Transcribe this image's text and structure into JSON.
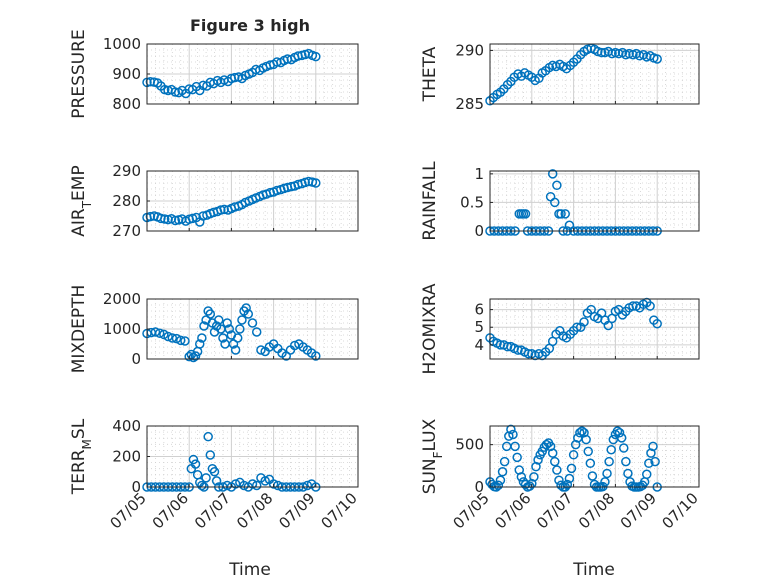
{
  "figure": {
    "title": "Figure 3 high",
    "xlabel": "Time"
  },
  "x_ticks": [
    "07/05",
    "07/06",
    "07/07",
    "07/08",
    "07/09",
    "07/10"
  ],
  "colors": {
    "marker": "#0072BD",
    "axes": "#262626",
    "grid": "#d0d0d0",
    "background": "#ffffff"
  },
  "chart_data": [
    {
      "type": "scatter",
      "ylabel": "PRESSURE",
      "ylim": [
        800,
        1000
      ],
      "yticks": [
        "800",
        "900",
        "1000"
      ],
      "xlim": [
        "07/05",
        "07/10"
      ],
      "grid": "on",
      "x": [
        0.0,
        0.08,
        0.17,
        0.25,
        0.33,
        0.42,
        0.5,
        0.58,
        0.67,
        0.75,
        0.83,
        0.92,
        1.0,
        1.08,
        1.17,
        1.25,
        1.33,
        1.42,
        1.5,
        1.58,
        1.67,
        1.75,
        1.83,
        1.92,
        2.0,
        2.08,
        2.17,
        2.25,
        2.33,
        2.42,
        2.5,
        2.58,
        2.67,
        2.75,
        2.83,
        2.92,
        3.0,
        3.08,
        3.17,
        3.25,
        3.33,
        3.42,
        3.5,
        3.58,
        3.67,
        3.75,
        3.83,
        3.92,
        4.0
      ],
      "y": [
        872,
        874,
        873,
        870,
        860,
        848,
        845,
        848,
        840,
        838,
        845,
        835,
        850,
        848,
        858,
        845,
        862,
        860,
        872,
        868,
        878,
        872,
        880,
        875,
        885,
        888,
        890,
        885,
        895,
        900,
        905,
        915,
        912,
        920,
        925,
        930,
        932,
        940,
        938,
        945,
        950,
        948,
        955,
        960,
        962,
        965,
        968,
        962,
        958
      ]
    },
    {
      "type": "scatter",
      "ylabel": "THETA",
      "ylim": [
        285,
        290.6
      ],
      "yticks": [
        "285",
        "290"
      ],
      "xlim": [
        "07/05",
        "07/10"
      ],
      "grid": "on",
      "x": [
        0.0,
        0.08,
        0.17,
        0.25,
        0.33,
        0.42,
        0.5,
        0.58,
        0.67,
        0.75,
        0.83,
        0.92,
        1.0,
        1.08,
        1.17,
        1.25,
        1.33,
        1.42,
        1.5,
        1.58,
        1.67,
        1.75,
        1.83,
        1.92,
        2.0,
        2.08,
        2.17,
        2.25,
        2.33,
        2.42,
        2.5,
        2.58,
        2.67,
        2.75,
        2.83,
        2.92,
        3.0,
        3.08,
        3.17,
        3.25,
        3.33,
        3.42,
        3.5,
        3.58,
        3.67,
        3.75,
        3.83,
        3.92,
        4.0
      ],
      "y": [
        285.3,
        285.6,
        285.9,
        286.1,
        286.4,
        286.8,
        287.1,
        287.5,
        287.8,
        287.6,
        287.9,
        287.7,
        287.5,
        287.2,
        287.4,
        287.9,
        288.1,
        288.4,
        288.6,
        288.5,
        288.7,
        288.5,
        288.3,
        288.6,
        288.9,
        289.2,
        289.6,
        289.9,
        290.1,
        290.2,
        290.1,
        289.9,
        289.8,
        289.8,
        289.9,
        289.7,
        289.8,
        289.7,
        289.8,
        289.6,
        289.7,
        289.6,
        289.7,
        289.5,
        289.6,
        289.4,
        289.5,
        289.3,
        289.2
      ]
    },
    {
      "type": "scatter",
      "ylabel": "AIR_TEMP",
      "ylim": [
        270,
        290
      ],
      "yticks": [
        "270",
        "280",
        "290"
      ],
      "xlim": [
        "07/05",
        "07/10"
      ],
      "grid": "on",
      "x": [
        0.0,
        0.08,
        0.17,
        0.25,
        0.33,
        0.42,
        0.5,
        0.58,
        0.67,
        0.75,
        0.83,
        0.92,
        1.0,
        1.08,
        1.17,
        1.25,
        1.33,
        1.42,
        1.5,
        1.58,
        1.67,
        1.75,
        1.83,
        1.92,
        2.0,
        2.08,
        2.17,
        2.25,
        2.33,
        2.42,
        2.5,
        2.58,
        2.67,
        2.75,
        2.83,
        2.92,
        3.0,
        3.08,
        3.17,
        3.25,
        3.33,
        3.42,
        3.5,
        3.58,
        3.67,
        3.75,
        3.83,
        3.92,
        4.0
      ],
      "y": [
        274.5,
        274.8,
        275.0,
        274.7,
        274.2,
        274.0,
        273.8,
        274.1,
        273.5,
        273.7,
        274.0,
        273.3,
        273.9,
        274.2,
        274.5,
        273.0,
        275.0,
        275.3,
        275.8,
        276.2,
        276.5,
        277.0,
        277.2,
        277.0,
        277.5,
        278.0,
        278.3,
        278.8,
        279.5,
        280.0,
        280.5,
        281.0,
        281.5,
        282.0,
        282.3,
        282.8,
        283.0,
        283.5,
        283.8,
        284.2,
        284.5,
        284.8,
        285.0,
        285.5,
        285.8,
        286.2,
        286.5,
        286.3,
        286.0
      ]
    },
    {
      "type": "scatter",
      "ylabel": "RAINFALL",
      "ylim": [
        0,
        1.05
      ],
      "yticks": [
        "0",
        "0.5",
        "1"
      ],
      "xlim": [
        "07/05",
        "07/10"
      ],
      "grid": "on",
      "x": [
        0.0,
        0.1,
        0.2,
        0.3,
        0.4,
        0.5,
        0.6,
        0.7,
        0.75,
        0.8,
        0.85,
        0.9,
        1.0,
        1.1,
        1.2,
        1.3,
        1.4,
        1.45,
        1.5,
        1.55,
        1.6,
        1.65,
        1.7,
        1.75,
        1.8,
        1.85,
        1.9,
        2.0,
        2.1,
        2.2,
        2.3,
        2.4,
        2.5,
        2.6,
        2.7,
        2.8,
        2.9,
        3.0,
        3.1,
        3.2,
        3.3,
        3.4,
        3.5,
        3.6,
        3.7,
        3.8,
        3.9,
        4.0
      ],
      "y": [
        0,
        0,
        0,
        0,
        0,
        0,
        0,
        0.3,
        0.3,
        0.3,
        0.3,
        0,
        0,
        0,
        0,
        0,
        0,
        0.6,
        1.0,
        0.5,
        0.8,
        0.3,
        0.3,
        0,
        0.3,
        0,
        0.1,
        0,
        0,
        0,
        0,
        0,
        0,
        0,
        0,
        0,
        0,
        0,
        0,
        0,
        0,
        0,
        0,
        0,
        0,
        0,
        0,
        0
      ]
    },
    {
      "type": "scatter",
      "ylabel": "MIXDEPTH",
      "ylim": [
        0,
        2000
      ],
      "yticks": [
        "0",
        "1000",
        "2000"
      ],
      "xlim": [
        "07/05",
        "07/10"
      ],
      "grid": "on",
      "x": [
        0.0,
        0.1,
        0.2,
        0.3,
        0.4,
        0.5,
        0.6,
        0.7,
        0.8,
        0.9,
        1.0,
        1.05,
        1.1,
        1.15,
        1.2,
        1.25,
        1.3,
        1.35,
        1.4,
        1.45,
        1.5,
        1.55,
        1.6,
        1.65,
        1.7,
        1.75,
        1.8,
        1.85,
        1.9,
        1.95,
        2.0,
        2.05,
        2.1,
        2.15,
        2.2,
        2.25,
        2.3,
        2.35,
        2.4,
        2.5,
        2.6,
        2.7,
        2.8,
        2.9,
        3.0,
        3.1,
        3.2,
        3.3,
        3.4,
        3.5,
        3.6,
        3.7,
        3.8,
        3.9,
        4.0
      ],
      "y": [
        850,
        880,
        900,
        860,
        820,
        750,
        700,
        680,
        620,
        600,
        80,
        150,
        50,
        100,
        250,
        500,
        700,
        1100,
        1300,
        1600,
        1500,
        1200,
        900,
        1100,
        1300,
        1000,
        700,
        500,
        1200,
        1000,
        800,
        500,
        300,
        700,
        1000,
        1300,
        1600,
        1700,
        1500,
        1200,
        900,
        300,
        250,
        400,
        500,
        350,
        200,
        100,
        300,
        450,
        500,
        400,
        300,
        200,
        100
      ]
    },
    {
      "type": "scatter",
      "ylabel": "H2OMIXRA",
      "ylim": [
        3.2,
        6.6
      ],
      "yticks": [
        "4",
        "5",
        "6"
      ],
      "xlim": [
        "07/05",
        "07/10"
      ],
      "grid": "on",
      "x": [
        0.0,
        0.08,
        0.17,
        0.25,
        0.33,
        0.42,
        0.5,
        0.58,
        0.67,
        0.75,
        0.83,
        0.92,
        1.0,
        1.08,
        1.17,
        1.25,
        1.33,
        1.42,
        1.5,
        1.58,
        1.67,
        1.75,
        1.83,
        1.92,
        2.0,
        2.08,
        2.17,
        2.25,
        2.33,
        2.42,
        2.5,
        2.58,
        2.67,
        2.75,
        2.83,
        2.92,
        3.0,
        3.08,
        3.17,
        3.25,
        3.33,
        3.42,
        3.5,
        3.58,
        3.67,
        3.75,
        3.83,
        3.92,
        4.0
      ],
      "y": [
        4.4,
        4.2,
        4.1,
        4.0,
        4.0,
        3.9,
        3.9,
        3.8,
        3.7,
        3.7,
        3.6,
        3.5,
        3.5,
        3.4,
        3.5,
        3.4,
        3.6,
        3.8,
        4.2,
        4.6,
        4.8,
        4.5,
        4.4,
        4.6,
        4.8,
        5.0,
        5.0,
        5.3,
        5.8,
        6.0,
        5.6,
        5.5,
        5.8,
        5.4,
        5.1,
        5.5,
        5.9,
        6.0,
        5.7,
        5.9,
        6.1,
        6.2,
        6.2,
        6.1,
        6.3,
        6.4,
        6.2,
        5.4,
        5.2
      ]
    },
    {
      "type": "scatter",
      "ylabel": "TERR_MSL",
      "ylim": [
        0,
        400
      ],
      "yticks": [
        "0",
        "200",
        "400"
      ],
      "xlim": [
        "07/05",
        "07/10"
      ],
      "grid": "on",
      "x": [
        0.0,
        0.1,
        0.2,
        0.3,
        0.4,
        0.5,
        0.6,
        0.7,
        0.8,
        0.9,
        1.0,
        1.05,
        1.1,
        1.15,
        1.2,
        1.25,
        1.3,
        1.35,
        1.4,
        1.45,
        1.5,
        1.55,
        1.6,
        1.65,
        1.7,
        1.8,
        1.9,
        2.0,
        2.1,
        2.2,
        2.3,
        2.4,
        2.5,
        2.6,
        2.7,
        2.8,
        2.9,
        3.0,
        3.1,
        3.2,
        3.3,
        3.4,
        3.5,
        3.6,
        3.7,
        3.8,
        3.9,
        4.0
      ],
      "y": [
        0,
        0,
        0,
        0,
        0,
        0,
        0,
        0,
        0,
        0,
        0,
        120,
        180,
        150,
        80,
        30,
        10,
        0,
        60,
        330,
        210,
        120,
        100,
        40,
        0,
        0,
        10,
        0,
        20,
        30,
        10,
        0,
        20,
        10,
        60,
        40,
        50,
        20,
        10,
        0,
        0,
        0,
        0,
        0,
        0,
        10,
        20,
        0
      ]
    },
    {
      "type": "scatter",
      "ylabel": "SUN_FLUX",
      "ylim": [
        0,
        720
      ],
      "yticks": [
        "0",
        "500"
      ],
      "xlim": [
        "07/05",
        "07/10"
      ],
      "grid": "on",
      "x": [
        0.0,
        0.05,
        0.1,
        0.15,
        0.2,
        0.25,
        0.3,
        0.35,
        0.4,
        0.45,
        0.5,
        0.55,
        0.6,
        0.65,
        0.7,
        0.75,
        0.8,
        0.85,
        0.9,
        0.95,
        1.0,
        1.05,
        1.1,
        1.15,
        1.2,
        1.25,
        1.3,
        1.35,
        1.4,
        1.45,
        1.5,
        1.55,
        1.6,
        1.65,
        1.7,
        1.75,
        1.8,
        1.85,
        1.9,
        1.95,
        2.0,
        2.05,
        2.1,
        2.15,
        2.2,
        2.25,
        2.3,
        2.35,
        2.4,
        2.45,
        2.5,
        2.55,
        2.6,
        2.65,
        2.7,
        2.75,
        2.8,
        2.85,
        2.9,
        2.95,
        3.0,
        3.05,
        3.1,
        3.15,
        3.2,
        3.25,
        3.3,
        3.35,
        3.4,
        3.45,
        3.5,
        3.55,
        3.6,
        3.65,
        3.7,
        3.75,
        3.8,
        3.85,
        3.9,
        3.95,
        4.0
      ],
      "y": [
        60,
        30,
        5,
        0,
        20,
        80,
        180,
        300,
        480,
        600,
        680,
        620,
        480,
        350,
        200,
        120,
        60,
        30,
        0,
        10,
        40,
        120,
        240,
        320,
        380,
        420,
        470,
        500,
        520,
        480,
        400,
        300,
        200,
        80,
        20,
        0,
        0,
        30,
        100,
        220,
        380,
        500,
        580,
        640,
        660,
        640,
        560,
        420,
        280,
        130,
        30,
        0,
        0,
        0,
        5,
        60,
        160,
        300,
        440,
        560,
        620,
        660,
        640,
        580,
        460,
        300,
        160,
        60,
        10,
        0,
        0,
        0,
        5,
        20,
        60,
        150,
        280,
        400,
        480,
        300,
        0
      ]
    }
  ]
}
